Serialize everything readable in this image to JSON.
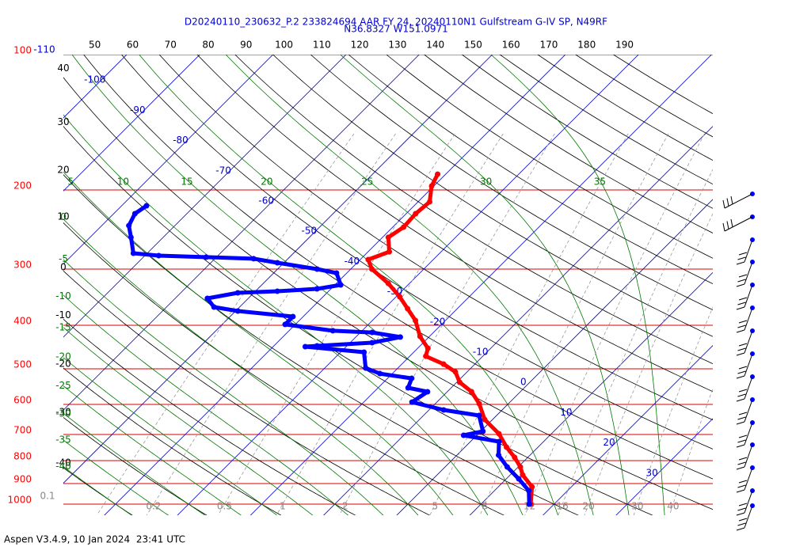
{
  "chart_data": {
    "type": "skewt",
    "title": [
      "D20240110_230632_P.2 233824694 AAR FY 24, 20240110N1 Gulfstream G-IV SP, N49RF",
      "N36.8327 W151.0971"
    ],
    "log_y": true,
    "ylim": [
      100,
      1000
    ],
    "yticks": [
      100,
      200,
      300,
      400,
      500,
      600,
      700,
      800,
      900,
      1000
    ],
    "isotherm_labels": [
      -110,
      -100,
      -90,
      -80,
      -70,
      -60,
      -50,
      -40,
      -30,
      -20,
      -10,
      0,
      10,
      20,
      30
    ],
    "dry_adiabat_top_labels": [
      50,
      60,
      70,
      80,
      90,
      100,
      110,
      120,
      130,
      140,
      150,
      160,
      170,
      180,
      190
    ],
    "dry_adiabat_left_labels": [
      40,
      30,
      20,
      10,
      0,
      -10,
      -20,
      -30,
      -40
    ],
    "moist_adiabat_top_labels": [
      5,
      10,
      15,
      20,
      25,
      30,
      35
    ],
    "moist_adiabat_left_labels": [
      0,
      -5,
      -10,
      -15,
      -20,
      -25,
      -30,
      -35,
      -40
    ],
    "mixing_ratio_labels": [
      0.1,
      0.2,
      0.5,
      1,
      2,
      5,
      8,
      12,
      16,
      20,
      30,
      40
    ],
    "series": [
      {
        "color": "#ff0000",
        "pressure": [
          184.5,
          196,
          212.6,
          225.9,
          242,
          255,
          274.5,
          285.8,
          300,
          322.8,
          345.7,
          367.4,
          390.4,
          423.5,
          450,
          468.7,
          488,
          508,
          535.7,
          562,
          597.6,
          648,
          697,
          747,
          787,
          826.6,
          861,
          915,
          1000
        ],
        "values": [
          -41.1,
          -40.3,
          -38.4,
          -38.7,
          -38.5,
          -39.2,
          -37.1,
          -38.9,
          -37.1,
          -32.9,
          -29.5,
          -26.8,
          -24.1,
          -21.3,
          -18.6,
          -17.8,
          -14.3,
          -11.6,
          -9.6,
          -6.7,
          -4.0,
          -1.1,
          2.8,
          5.7,
          8.2,
          10.3,
          11.7,
          14.6,
          16.8
        ]
      },
      {
        "color": "#0000ff",
        "pressure": [
          216.9,
          225.9,
          240.1,
          255,
          276.6,
          280,
          282.2,
          284.5,
          290.4,
          300,
          306.1,
          325.3,
          332,
          336,
          338.8,
          348.5,
          364.4,
          371.9,
          382.6,
          398.3,
          411.4,
          415,
          425,
          437.3,
          444.5,
          446.3,
          459.2,
          498.1,
          512.4,
          525,
          551,
          562.3,
          593,
          617.3,
          635,
          688.7,
          702.8,
          726,
          778,
          826.6,
          878.5,
          933.4,
          1000
        ],
        "values": [
          -76.6,
          -77.1,
          -76.3,
          -74.4,
          -71.9,
          -68.1,
          -61.4,
          -54.7,
          -50.9,
          -44.6,
          -41.4,
          -39.2,
          -41.9,
          -47.0,
          -52.2,
          -55.6,
          -53.5,
          -49.7,
          -41.4,
          -41.4,
          -34.0,
          -28.4,
          -23.9,
          -27.0,
          -34.1,
          -35.6,
          -26.8,
          -24.4,
          -21.7,
          -16.7,
          -15.9,
          -12.7,
          -13.4,
          -8.0,
          -2.4,
          0.3,
          -1.8,
          3.9,
          5.7,
          8.5,
          11.7,
          14.7,
          16.6
        ]
      }
    ]
  },
  "footer": "Aspen V3.4.9, 10 Jan 2024  23:41 UTC"
}
